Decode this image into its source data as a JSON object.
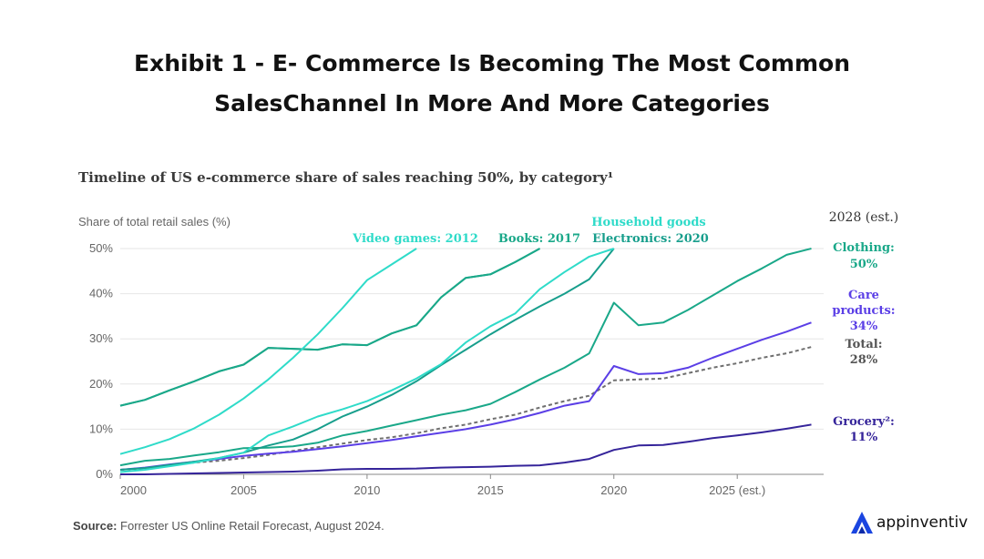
{
  "title_line1": "Exhibit 1 - E- Commerce Is Becoming The Most Common",
  "title_line2": "SalesChannel In More And More Categories",
  "source_label": "Source:",
  "source_text": "Forrester US Online Retail Forecast, August 2024.",
  "brand": {
    "name": "appinventiv",
    "accent": "#1a45e0"
  },
  "chart_data": {
    "type": "line",
    "title": "Timeline of US e-commerce share of sales reaching 50%, by category¹",
    "ylabel": "Share of total retail sales (%)",
    "xlim": [
      2000,
      2028.5
    ],
    "ylim": [
      0,
      50
    ],
    "x_ticks": [
      2000,
      2005,
      2010,
      2015,
      2020,
      2025
    ],
    "x_tick_labels": [
      "2000",
      "2005",
      "2010",
      "2015",
      "2020",
      "2025 (est.)"
    ],
    "y_ticks": [
      0,
      10,
      20,
      30,
      40,
      50
    ],
    "y_tick_labels": [
      "0%",
      "10%",
      "20%",
      "30%",
      "40%",
      "50%"
    ],
    "est_header": "2028 (est.)",
    "series": [
      {
        "name": "Video games",
        "label": "Video games: 2012",
        "color": "#2fdbc9",
        "dashed": false,
        "x": [
          2000,
          2001,
          2002,
          2003,
          2004,
          2005,
          2006,
          2007,
          2008,
          2009,
          2010,
          2011,
          2012
        ],
        "y": [
          4.5,
          6,
          7.8,
          10.2,
          13.2,
          16.8,
          21,
          25.8,
          31,
          36.8,
          43,
          46.5,
          50
        ]
      },
      {
        "name": "Clothing",
        "label": "Clothing:",
        "value_label": "50%",
        "color": "#1aa889",
        "dashed": false,
        "x": [
          2000,
          2001,
          2002,
          2003,
          2004,
          2005,
          2006,
          2007,
          2008,
          2009,
          2010,
          2011,
          2012,
          2013,
          2014,
          2015,
          2016,
          2017,
          2018,
          2019,
          2020,
          2021,
          2022,
          2023,
          2024,
          2025,
          2026,
          2027,
          2028
        ],
        "y": [
          15.2,
          16.5,
          18.6,
          20.6,
          22.8,
          24.3,
          28,
          27.8,
          27.6,
          28.8,
          28.6,
          31.2,
          33,
          39.2,
          43.5,
          44.3,
          47,
          50,
          null,
          null,
          null,
          null,
          null,
          null,
          null,
          null,
          null,
          null,
          null
        ]
      },
      {
        "name": "Books",
        "label": "Books: 2017",
        "color": "#1aa889",
        "dashed": false,
        "x": [
          2000,
          2001,
          2002,
          2003,
          2004,
          2005,
          2006,
          2007,
          2008,
          2009,
          2010,
          2011,
          2012,
          2013,
          2014,
          2015,
          2016,
          2017
        ],
        "y": [
          15.2,
          16.5,
          18.6,
          20.6,
          22.8,
          24.3,
          28,
          27.8,
          27.6,
          28.8,
          28.6,
          31.2,
          33,
          39.2,
          43.5,
          44.3,
          47,
          50
        ]
      },
      {
        "name": "Household goods",
        "label": "Household goods",
        "color": "#2fdbc9",
        "dashed": false,
        "x": [
          2000,
          2001,
          2002,
          2003,
          2004,
          2005,
          2006,
          2007,
          2008,
          2009,
          2010,
          2011,
          2012,
          2013,
          2014,
          2015,
          2016,
          2017,
          2018,
          2019,
          2020
        ],
        "y": [
          0.5,
          1,
          1.8,
          2.6,
          3.6,
          4.8,
          8.6,
          10.6,
          12.8,
          14.4,
          16.2,
          18.6,
          21.2,
          24.4,
          29.2,
          32.8,
          35.6,
          41,
          44.8,
          48.2,
          50
        ]
      },
      {
        "name": "Electronics",
        "label": "Electronics: 2020",
        "color": "#179e8c",
        "dashed": false,
        "x": [
          2000,
          2001,
          2002,
          2003,
          2004,
          2005,
          2006,
          2007,
          2008,
          2009,
          2010,
          2011,
          2012,
          2013,
          2014,
          2015,
          2016,
          2017,
          2018,
          2019,
          2020
        ],
        "y": [
          1,
          1.4,
          2.1,
          2.8,
          3.6,
          4.8,
          6.4,
          7.7,
          10,
          12.8,
          15,
          17.6,
          20.6,
          24.2,
          27.6,
          31,
          34.2,
          37.2,
          40,
          43.2,
          50
        ]
      },
      {
        "name": "Clothing 2028",
        "label": "Clothing:",
        "value_label": "50%",
        "color": "#1aa889",
        "dashed": false,
        "x": [
          2000,
          2001,
          2002,
          2003,
          2004,
          2005,
          2006,
          2007,
          2008,
          2009,
          2010,
          2011,
          2012,
          2013,
          2014,
          2015,
          2016,
          2017,
          2018,
          2019,
          2020,
          2021,
          2022,
          2023,
          2024,
          2025,
          2026,
          2027,
          2028
        ],
        "y": [
          2,
          3,
          3.4,
          4.2,
          4.9,
          5.8,
          5.9,
          6.2,
          7,
          8.6,
          9.6,
          10.8,
          12,
          13.2,
          14.2,
          15.6,
          18.2,
          21,
          23.6,
          26.8,
          38,
          33,
          33.6,
          36.4,
          39.6,
          42.8,
          45.6,
          48.6,
          50
        ]
      },
      {
        "name": "Care products",
        "label": "Care",
        "label2": "products:",
        "value_label": "34%",
        "color": "#5b3fe6",
        "dashed": false,
        "x": [
          2000,
          2001,
          2002,
          2003,
          2004,
          2005,
          2006,
          2007,
          2008,
          2009,
          2010,
          2011,
          2012,
          2013,
          2014,
          2015,
          2016,
          2017,
          2018,
          2019,
          2020,
          2021,
          2022,
          2023,
          2024,
          2025,
          2026,
          2027,
          2028
        ],
        "y": [
          1,
          1.5,
          2.2,
          2.8,
          3.4,
          4.1,
          4.6,
          5,
          5.6,
          6.2,
          6.9,
          7.6,
          8.4,
          9.2,
          10,
          11,
          12.2,
          13.6,
          15.2,
          16.2,
          24,
          22.2,
          22.4,
          23.6,
          25.8,
          27.8,
          29.8,
          31.6,
          33.6
        ]
      },
      {
        "name": "Total",
        "label": "Total:",
        "value_label": "28%",
        "color": "#6f6f6f",
        "dashed": true,
        "x": [
          2000,
          2001,
          2002,
          2003,
          2004,
          2005,
          2006,
          2007,
          2008,
          2009,
          2010,
          2011,
          2012,
          2013,
          2014,
          2015,
          2016,
          2017,
          2018,
          2019,
          2020,
          2021,
          2022,
          2023,
          2024,
          2025,
          2026,
          2027,
          2028
        ],
        "y": [
          1,
          1.4,
          2.1,
          2.6,
          3,
          3.6,
          4.3,
          5.2,
          6,
          6.8,
          7.6,
          8.2,
          9.1,
          10.2,
          11,
          12.2,
          13.2,
          14.8,
          16.2,
          17.4,
          20.8,
          21,
          21.2,
          22.4,
          23.6,
          24.6,
          25.8,
          26.8,
          28.2
        ]
      },
      {
        "name": "Grocery",
        "label": "Grocery²:",
        "value_label": "11%",
        "color": "#35249a",
        "dashed": false,
        "x": [
          2000,
          2001,
          2002,
          2003,
          2004,
          2005,
          2006,
          2007,
          2008,
          2009,
          2010,
          2011,
          2012,
          2013,
          2014,
          2015,
          2016,
          2017,
          2018,
          2019,
          2020,
          2021,
          2022,
          2023,
          2024,
          2025,
          2026,
          2027,
          2028
        ],
        "y": [
          0,
          0,
          0.1,
          0.2,
          0.3,
          0.4,
          0.5,
          0.6,
          0.8,
          1.1,
          1.2,
          1.2,
          1.3,
          1.5,
          1.6,
          1.7,
          1.9,
          2,
          2.6,
          3.4,
          5.4,
          6.4,
          6.5,
          7.2,
          8,
          8.6,
          9.3,
          10.1,
          11
        ]
      }
    ]
  }
}
